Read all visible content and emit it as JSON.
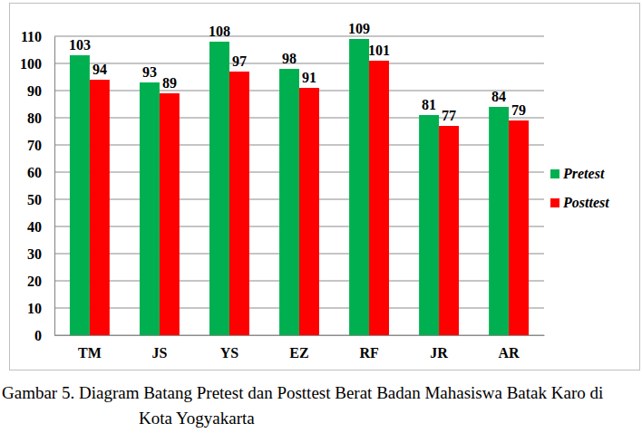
{
  "chart_data": {
    "type": "bar",
    "title": "Gambar 5. Diagram Batang Pretest dan Posttest Berat Badan Mahasiswa Batak Karo di Kota Yogyakarta",
    "categories": [
      "TM",
      "JS",
      "YS",
      "EZ",
      "RF",
      "JR",
      "AR"
    ],
    "series": [
      {
        "name": "Pretest",
        "color": "#00b050",
        "values": [
          103,
          93,
          108,
          98,
          109,
          81,
          84
        ]
      },
      {
        "name": "Posttest",
        "color": "#ff0000",
        "values": [
          94,
          89,
          97,
          91,
          101,
          77,
          79
        ]
      }
    ],
    "ylim": [
      0,
      110
    ],
    "yticks": [
      0,
      10,
      20,
      30,
      40,
      50,
      60,
      70,
      80,
      90,
      100,
      110
    ],
    "grid": true,
    "legend": "right",
    "data_labels": true
  }
}
